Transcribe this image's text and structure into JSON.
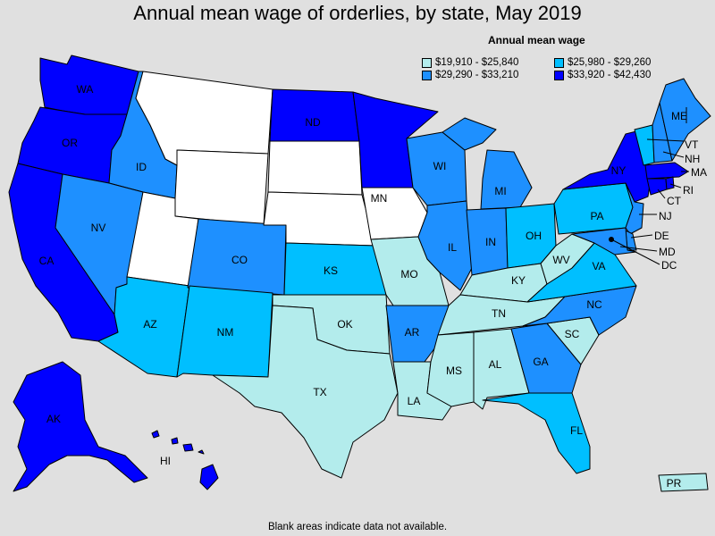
{
  "title": "Annual mean wage of orderlies, by state, May 2019",
  "legend": {
    "title": "Annual mean wage",
    "items": [
      {
        "label": "$19,910 - $25,840",
        "color": "#b3ecec"
      },
      {
        "label": "$25,980 - $29,260",
        "color": "#00bfff"
      },
      {
        "label": "$29,290 - $33,210",
        "color": "#1e90ff"
      },
      {
        "label": "$33,920 - $42,430",
        "color": "#0000ff"
      }
    ]
  },
  "nodata_color": "#ffffff",
  "footnote": "Blank areas indicate data not available.",
  "states": {
    "WA": {
      "label": "WA",
      "bin": 3
    },
    "OR": {
      "label": "OR",
      "bin": 3
    },
    "CA": {
      "label": "CA",
      "bin": 3
    },
    "ID": {
      "label": "ID",
      "bin": 2
    },
    "NV": {
      "label": "NV",
      "bin": 2
    },
    "MT": {
      "label": "",
      "bin": -1
    },
    "WY": {
      "label": "",
      "bin": -1
    },
    "UT": {
      "label": "",
      "bin": -1
    },
    "AZ": {
      "label": "AZ",
      "bin": 1
    },
    "CO": {
      "label": "CO",
      "bin": 2
    },
    "NM": {
      "label": "NM",
      "bin": 1
    },
    "ND": {
      "label": "ND",
      "bin": 3
    },
    "SD": {
      "label": "",
      "bin": -1
    },
    "NE": {
      "label": "",
      "bin": -1
    },
    "KS": {
      "label": "KS",
      "bin": 1
    },
    "OK": {
      "label": "OK",
      "bin": 0
    },
    "TX": {
      "label": "TX",
      "bin": 0
    },
    "MN": {
      "label": "MN",
      "bin": 3
    },
    "IA": {
      "label": "",
      "bin": -1
    },
    "MO": {
      "label": "MO",
      "bin": 0
    },
    "AR": {
      "label": "AR",
      "bin": 2
    },
    "LA": {
      "label": "LA",
      "bin": 0
    },
    "WI": {
      "label": "WI",
      "bin": 2
    },
    "IL": {
      "label": "IL",
      "bin": 2
    },
    "MI": {
      "label": "MI",
      "bin": 2
    },
    "IN": {
      "label": "IN",
      "bin": 2
    },
    "OH": {
      "label": "OH",
      "bin": 1
    },
    "KY": {
      "label": "KY",
      "bin": 0
    },
    "TN": {
      "label": "TN",
      "bin": 0
    },
    "MS": {
      "label": "MS",
      "bin": 0
    },
    "AL": {
      "label": "AL",
      "bin": 0
    },
    "GA": {
      "label": "GA",
      "bin": 2
    },
    "FL": {
      "label": "FL",
      "bin": 1
    },
    "SC": {
      "label": "SC",
      "bin": 0
    },
    "NC": {
      "label": "NC",
      "bin": 2
    },
    "VA": {
      "label": "VA",
      "bin": 1
    },
    "WV": {
      "label": "WV",
      "bin": 0
    },
    "PA": {
      "label": "PA",
      "bin": 1
    },
    "NY": {
      "label": "NY",
      "bin": 3
    },
    "ME": {
      "label": "ME",
      "bin": 2
    },
    "VT": {
      "label": "VT",
      "bin": 1
    },
    "NH": {
      "label": "NH",
      "bin": 2
    },
    "MA": {
      "label": "MA",
      "bin": 3
    },
    "RI": {
      "label": "RI",
      "bin": 3
    },
    "CT": {
      "label": "CT",
      "bin": 3
    },
    "NJ": {
      "label": "NJ",
      "bin": 2
    },
    "DE": {
      "label": "DE",
      "bin": 2
    },
    "MD": {
      "label": "MD",
      "bin": 2
    },
    "DC": {
      "label": "DC",
      "bin": 3
    },
    "AK": {
      "label": "AK",
      "bin": 3
    },
    "HI": {
      "label": "HI",
      "bin": 3
    },
    "PR": {
      "label": "PR",
      "bin": 0
    }
  }
}
